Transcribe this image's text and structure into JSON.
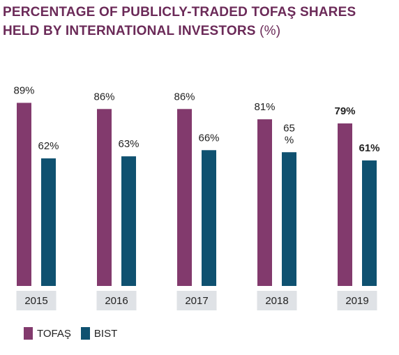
{
  "chart_data": {
    "type": "bar",
    "title": "PERCENTAGE OF PUBLICLY-TRADED TOFAŞ SHARES HELD BY INTERNATIONAL INVESTORS",
    "title_unit": "(%)",
    "categories": [
      "2015",
      "2016",
      "2017",
      "2018",
      "2019"
    ],
    "series": [
      {
        "name": "TOFAŞ",
        "color": "#823a6d",
        "values": [
          89,
          86,
          86,
          81,
          79
        ],
        "labels": [
          "89%",
          "86%",
          "86%",
          "81%",
          "79%"
        ]
      },
      {
        "name": "BIST",
        "color": "#0f5170",
        "values": [
          62,
          63,
          66,
          65,
          61
        ],
        "labels": [
          "62%",
          "63%",
          "66%",
          "65\n%",
          "61%"
        ]
      }
    ],
    "bold_categories": [
      "2019"
    ],
    "ylim": [
      0,
      100
    ],
    "grid": false,
    "legend_position": "bottom-left",
    "category_label_background": "#dfe2e6"
  }
}
